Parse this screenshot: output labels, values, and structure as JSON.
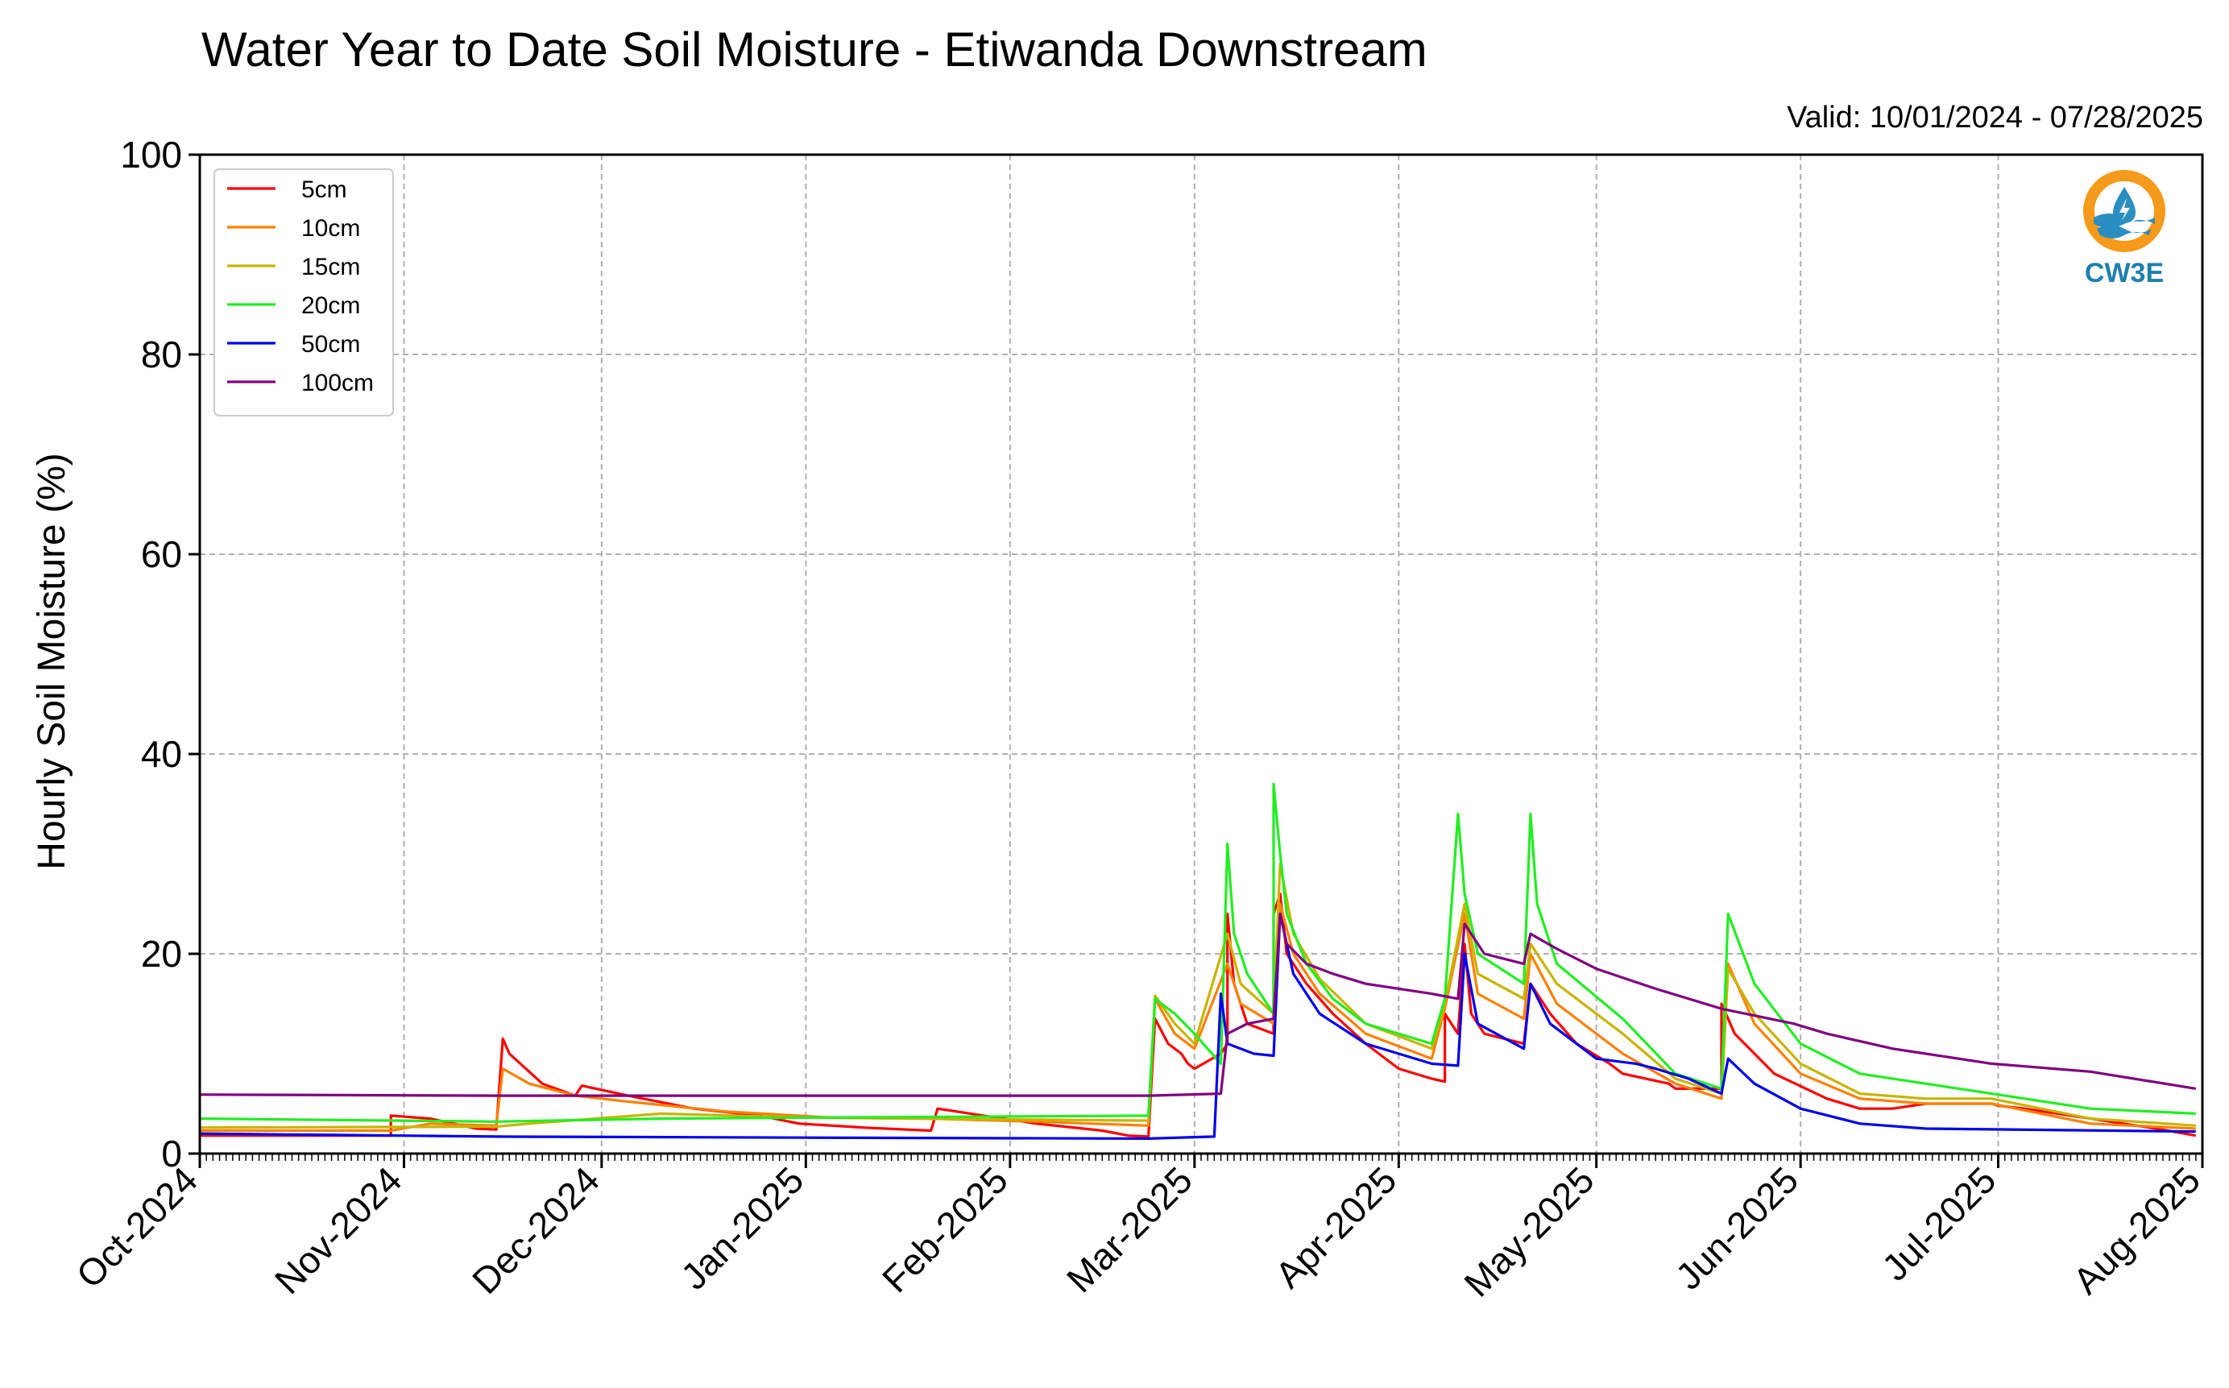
{
  "chart_data": {
    "type": "line",
    "title": "Water Year to Date Soil Moisture - Etiwanda Downstream",
    "subtitle": "Valid: 10/01/2024 - 07/28/2025",
    "xlabel": "",
    "ylabel": "Hourly Soil Moisture (%)",
    "ylim": [
      0,
      100
    ],
    "xlim": [
      "2024-10-01",
      "2025-08-01"
    ],
    "y_ticks": [
      0,
      20,
      40,
      60,
      80,
      100
    ],
    "x_tick_labels": [
      "Oct-2024",
      "Nov-2024",
      "Dec-2024",
      "Jan-2025",
      "Feb-2025",
      "Mar-2025",
      "Apr-2025",
      "May-2025",
      "Jun-2025",
      "Jul-2025",
      "Aug-2025"
    ],
    "x_tick_dates": [
      "2024-10-01",
      "2024-11-01",
      "2024-12-01",
      "2025-01-01",
      "2025-02-01",
      "2025-03-01",
      "2025-04-01",
      "2025-05-01",
      "2025-06-01",
      "2025-07-01",
      "2025-08-01"
    ],
    "grid": true,
    "legend_position": "top-left",
    "series": [
      {
        "name": "5cm",
        "color": "#ff0000",
        "points": [
          [
            "2024-10-01",
            1.8
          ],
          [
            "2024-10-30",
            1.8
          ],
          [
            "2024-10-30",
            3.8
          ],
          [
            "2024-11-05",
            3.5
          ],
          [
            "2024-11-12",
            2.5
          ],
          [
            "2024-11-15",
            2.4
          ],
          [
            "2024-11-16",
            11.5
          ],
          [
            "2024-11-17",
            10.0
          ],
          [
            "2024-11-22",
            7.0
          ],
          [
            "2024-11-27",
            5.8
          ],
          [
            "2024-11-28",
            6.8
          ],
          [
            "2024-12-05",
            5.8
          ],
          [
            "2024-12-15",
            4.5
          ],
          [
            "2024-12-25",
            3.8
          ],
          [
            "2024-12-31",
            3.0
          ],
          [
            "2025-01-10",
            2.6
          ],
          [
            "2025-01-20",
            2.3
          ],
          [
            "2025-01-21",
            4.5
          ],
          [
            "2025-01-28",
            3.8
          ],
          [
            "2025-02-05",
            3.0
          ],
          [
            "2025-02-15",
            2.3
          ],
          [
            "2025-02-19",
            1.8
          ],
          [
            "2025-02-22",
            1.7
          ],
          [
            "2025-02-23",
            13.5
          ],
          [
            "2025-02-25",
            11.0
          ],
          [
            "2025-02-27",
            10.0
          ],
          [
            "2025-02-28",
            9.0
          ],
          [
            "2025-03-01",
            8.5
          ],
          [
            "2025-03-05",
            10.0
          ],
          [
            "2025-03-06",
            11.0
          ],
          [
            "2025-03-06",
            24.0
          ],
          [
            "2025-03-07",
            17.0
          ],
          [
            "2025-03-08",
            15.0
          ],
          [
            "2025-03-09",
            13.0
          ],
          [
            "2025-03-13",
            12.0
          ],
          [
            "2025-03-13",
            24.0
          ],
          [
            "2025-03-14",
            26.0
          ],
          [
            "2025-03-15",
            20.0
          ],
          [
            "2025-03-18",
            17.0
          ],
          [
            "2025-03-22",
            14.0
          ],
          [
            "2025-03-27",
            11.0
          ],
          [
            "2025-04-01",
            8.5
          ],
          [
            "2025-04-06",
            7.5
          ],
          [
            "2025-04-08",
            7.2
          ],
          [
            "2025-04-08",
            14.0
          ],
          [
            "2025-04-10",
            12.0
          ],
          [
            "2025-04-11",
            21.0
          ],
          [
            "2025-04-12",
            14.0
          ],
          [
            "2025-04-14",
            12.0
          ],
          [
            "2025-04-20",
            11.0
          ],
          [
            "2025-04-21",
            17.0
          ],
          [
            "2025-04-24",
            14.0
          ],
          [
            "2025-04-28",
            11.0
          ],
          [
            "2025-05-03",
            9.0
          ],
          [
            "2025-05-05",
            8.0
          ],
          [
            "2025-05-12",
            7.0
          ],
          [
            "2025-05-13",
            6.5
          ],
          [
            "2025-05-16",
            6.5
          ],
          [
            "2025-05-20",
            6.5
          ],
          [
            "2025-05-20",
            15.0
          ],
          [
            "2025-05-22",
            12.0
          ],
          [
            "2025-05-28",
            8.0
          ],
          [
            "2025-06-05",
            5.5
          ],
          [
            "2025-06-10",
            4.5
          ],
          [
            "2025-06-15",
            4.5
          ],
          [
            "2025-06-20",
            5.0
          ],
          [
            "2025-06-25",
            5.0
          ],
          [
            "2025-06-30",
            5.0
          ],
          [
            "2025-07-01",
            4.8
          ],
          [
            "2025-07-05",
            4.5
          ],
          [
            "2025-07-15",
            3.5
          ],
          [
            "2025-07-25",
            2.5
          ],
          [
            "2025-07-31",
            1.8
          ]
        ]
      },
      {
        "name": "10cm",
        "color": "#ff8000",
        "points": [
          [
            "2024-10-01",
            2.3
          ],
          [
            "2024-10-30",
            2.3
          ],
          [
            "2024-11-05",
            3.0
          ],
          [
            "2024-11-15",
            2.8
          ],
          [
            "2024-11-16",
            8.5
          ],
          [
            "2024-11-20",
            7.0
          ],
          [
            "2024-11-27",
            5.8
          ],
          [
            "2024-12-05",
            5.2
          ],
          [
            "2024-12-20",
            4.2
          ],
          [
            "2025-01-05",
            3.6
          ],
          [
            "2025-01-20",
            3.5
          ],
          [
            "2025-02-05",
            3.2
          ],
          [
            "2025-02-22",
            2.8
          ],
          [
            "2025-02-23",
            15.5
          ],
          [
            "2025-02-26",
            12.0
          ],
          [
            "2025-03-01",
            10.5
          ],
          [
            "2025-03-06",
            19.0
          ],
          [
            "2025-03-08",
            15.0
          ],
          [
            "2025-03-13",
            13.0
          ],
          [
            "2025-03-14",
            25.0
          ],
          [
            "2025-03-16",
            20.0
          ],
          [
            "2025-03-20",
            16.0
          ],
          [
            "2025-03-27",
            12.0
          ],
          [
            "2025-04-06",
            9.5
          ],
          [
            "2025-04-08",
            14.5
          ],
          [
            "2025-04-11",
            24.0
          ],
          [
            "2025-04-13",
            16.0
          ],
          [
            "2025-04-20",
            13.5
          ],
          [
            "2025-04-21",
            20.0
          ],
          [
            "2025-04-25",
            15.0
          ],
          [
            "2025-05-05",
            10.0
          ],
          [
            "2025-05-13",
            7.0
          ],
          [
            "2025-05-20",
            5.5
          ],
          [
            "2025-05-21",
            19.0
          ],
          [
            "2025-05-25",
            13.0
          ],
          [
            "2025-06-01",
            8.0
          ],
          [
            "2025-06-10",
            5.5
          ],
          [
            "2025-06-20",
            5.0
          ],
          [
            "2025-06-30",
            5.0
          ],
          [
            "2025-07-15",
            3.0
          ],
          [
            "2025-07-31",
            2.5
          ]
        ]
      },
      {
        "name": "15cm",
        "color": "#c8b400",
        "points": [
          [
            "2024-10-01",
            2.6
          ],
          [
            "2024-11-15",
            2.7
          ],
          [
            "2024-11-20",
            3.0
          ],
          [
            "2024-12-10",
            4.0
          ],
          [
            "2025-01-01",
            3.6
          ],
          [
            "2025-02-22",
            3.3
          ],
          [
            "2025-02-23",
            15.8
          ],
          [
            "2025-02-26",
            13.0
          ],
          [
            "2025-03-01",
            11.0
          ],
          [
            "2025-03-06",
            22.0
          ],
          [
            "2025-03-08",
            17.0
          ],
          [
            "2025-03-13",
            14.0
          ],
          [
            "2025-03-14",
            29.0
          ],
          [
            "2025-03-16",
            22.0
          ],
          [
            "2025-03-20",
            17.5
          ],
          [
            "2025-03-27",
            13.0
          ],
          [
            "2025-04-06",
            10.5
          ],
          [
            "2025-04-08",
            15.0
          ],
          [
            "2025-04-11",
            25.0
          ],
          [
            "2025-04-13",
            18.0
          ],
          [
            "2025-04-20",
            15.5
          ],
          [
            "2025-04-21",
            21.0
          ],
          [
            "2025-04-25",
            17.0
          ],
          [
            "2025-05-05",
            12.0
          ],
          [
            "2025-05-13",
            7.5
          ],
          [
            "2025-05-20",
            6.0
          ],
          [
            "2025-05-21",
            18.5
          ],
          [
            "2025-05-25",
            14.0
          ],
          [
            "2025-06-01",
            9.0
          ],
          [
            "2025-06-10",
            6.0
          ],
          [
            "2025-06-20",
            5.5
          ],
          [
            "2025-06-30",
            5.5
          ],
          [
            "2025-07-15",
            3.5
          ],
          [
            "2025-07-31",
            2.8
          ]
        ]
      },
      {
        "name": "20cm",
        "color": "#22ee22",
        "points": [
          [
            "2024-10-01",
            3.5
          ],
          [
            "2024-11-15",
            3.2
          ],
          [
            "2024-12-10",
            3.5
          ],
          [
            "2025-01-01",
            3.6
          ],
          [
            "2025-02-22",
            3.8
          ],
          [
            "2025-02-23",
            15.5
          ],
          [
            "2025-02-26",
            14.0
          ],
          [
            "2025-03-01",
            12.0
          ],
          [
            "2025-03-05",
            9.0
          ],
          [
            "2025-03-06",
            31.0
          ],
          [
            "2025-03-07",
            22.0
          ],
          [
            "2025-03-09",
            18.0
          ],
          [
            "2025-03-13",
            14.0
          ],
          [
            "2025-03-13",
            37.0
          ],
          [
            "2025-03-14",
            30.0
          ],
          [
            "2025-03-15",
            24.0
          ],
          [
            "2025-03-18",
            19.0
          ],
          [
            "2025-03-22",
            15.5
          ],
          [
            "2025-03-27",
            13.0
          ],
          [
            "2025-04-06",
            11.0
          ],
          [
            "2025-04-08",
            15.5
          ],
          [
            "2025-04-10",
            34.0
          ],
          [
            "2025-04-11",
            26.0
          ],
          [
            "2025-04-13",
            20.0
          ],
          [
            "2025-04-20",
            17.0
          ],
          [
            "2025-04-21",
            34.0
          ],
          [
            "2025-04-22",
            25.0
          ],
          [
            "2025-04-25",
            19.0
          ],
          [
            "2025-05-05",
            13.5
          ],
          [
            "2025-05-13",
            8.0
          ],
          [
            "2025-05-20",
            6.5
          ],
          [
            "2025-05-21",
            24.0
          ],
          [
            "2025-05-25",
            17.0
          ],
          [
            "2025-06-01",
            11.0
          ],
          [
            "2025-06-10",
            8.0
          ],
          [
            "2025-06-20",
            7.0
          ],
          [
            "2025-06-30",
            6.0
          ],
          [
            "2025-07-15",
            4.5
          ],
          [
            "2025-07-31",
            4.0
          ]
        ]
      },
      {
        "name": "50cm",
        "color": "#0000ee",
        "points": [
          [
            "2024-10-01",
            2.0
          ],
          [
            "2024-11-15",
            1.7
          ],
          [
            "2025-01-01",
            1.6
          ],
          [
            "2025-02-22",
            1.5
          ],
          [
            "2025-03-04",
            1.7
          ],
          [
            "2025-03-05",
            16.0
          ],
          [
            "2025-03-06",
            11.0
          ],
          [
            "2025-03-10",
            10.0
          ],
          [
            "2025-03-13",
            9.8
          ],
          [
            "2025-03-14",
            24.0
          ],
          [
            "2025-03-16",
            18.0
          ],
          [
            "2025-03-20",
            14.0
          ],
          [
            "2025-03-27",
            11.0
          ],
          [
            "2025-04-06",
            9.0
          ],
          [
            "2025-04-10",
            8.8
          ],
          [
            "2025-04-11",
            20.0
          ],
          [
            "2025-04-13",
            13.0
          ],
          [
            "2025-04-20",
            10.5
          ],
          [
            "2025-04-21",
            17.0
          ],
          [
            "2025-04-24",
            13.0
          ],
          [
            "2025-05-01",
            9.5
          ],
          [
            "2025-05-07",
            9.0
          ],
          [
            "2025-05-10",
            8.5
          ],
          [
            "2025-05-15",
            7.5
          ],
          [
            "2025-05-20",
            6.0
          ],
          [
            "2025-05-21",
            9.5
          ],
          [
            "2025-05-25",
            7.0
          ],
          [
            "2025-06-01",
            4.5
          ],
          [
            "2025-06-10",
            3.0
          ],
          [
            "2025-06-20",
            2.5
          ],
          [
            "2025-07-31",
            2.2
          ]
        ]
      },
      {
        "name": "100cm",
        "color": "#800080",
        "points": [
          [
            "2024-10-01",
            5.9
          ],
          [
            "2024-11-15",
            5.8
          ],
          [
            "2025-01-01",
            5.8
          ],
          [
            "2025-02-22",
            5.8
          ],
          [
            "2025-03-05",
            6.0
          ],
          [
            "2025-03-06",
            12.0
          ],
          [
            "2025-03-09",
            13.0
          ],
          [
            "2025-03-13",
            13.5
          ],
          [
            "2025-03-14",
            24.0
          ],
          [
            "2025-03-15",
            21.0
          ],
          [
            "2025-03-18",
            19.0
          ],
          [
            "2025-03-22",
            18.0
          ],
          [
            "2025-03-27",
            17.0
          ],
          [
            "2025-04-06",
            16.0
          ],
          [
            "2025-04-10",
            15.5
          ],
          [
            "2025-04-11",
            23.0
          ],
          [
            "2025-04-14",
            20.0
          ],
          [
            "2025-04-20",
            19.0
          ],
          [
            "2025-04-21",
            22.0
          ],
          [
            "2025-04-25",
            20.5
          ],
          [
            "2025-05-01",
            18.5
          ],
          [
            "2025-05-10",
            16.5
          ],
          [
            "2025-05-20",
            14.5
          ],
          [
            "2025-05-31",
            13.0
          ],
          [
            "2025-06-05",
            12.0
          ],
          [
            "2025-06-15",
            10.5
          ],
          [
            "2025-06-20",
            10.0
          ],
          [
            "2025-06-30",
            9.0
          ],
          [
            "2025-07-15",
            8.2
          ],
          [
            "2025-07-31",
            6.5
          ]
        ]
      }
    ]
  },
  "logo": {
    "text": "CW3E",
    "color_ring": "#f59a1b",
    "color_wave": "#2a8fc0",
    "color_text": "#1f7fb0"
  }
}
